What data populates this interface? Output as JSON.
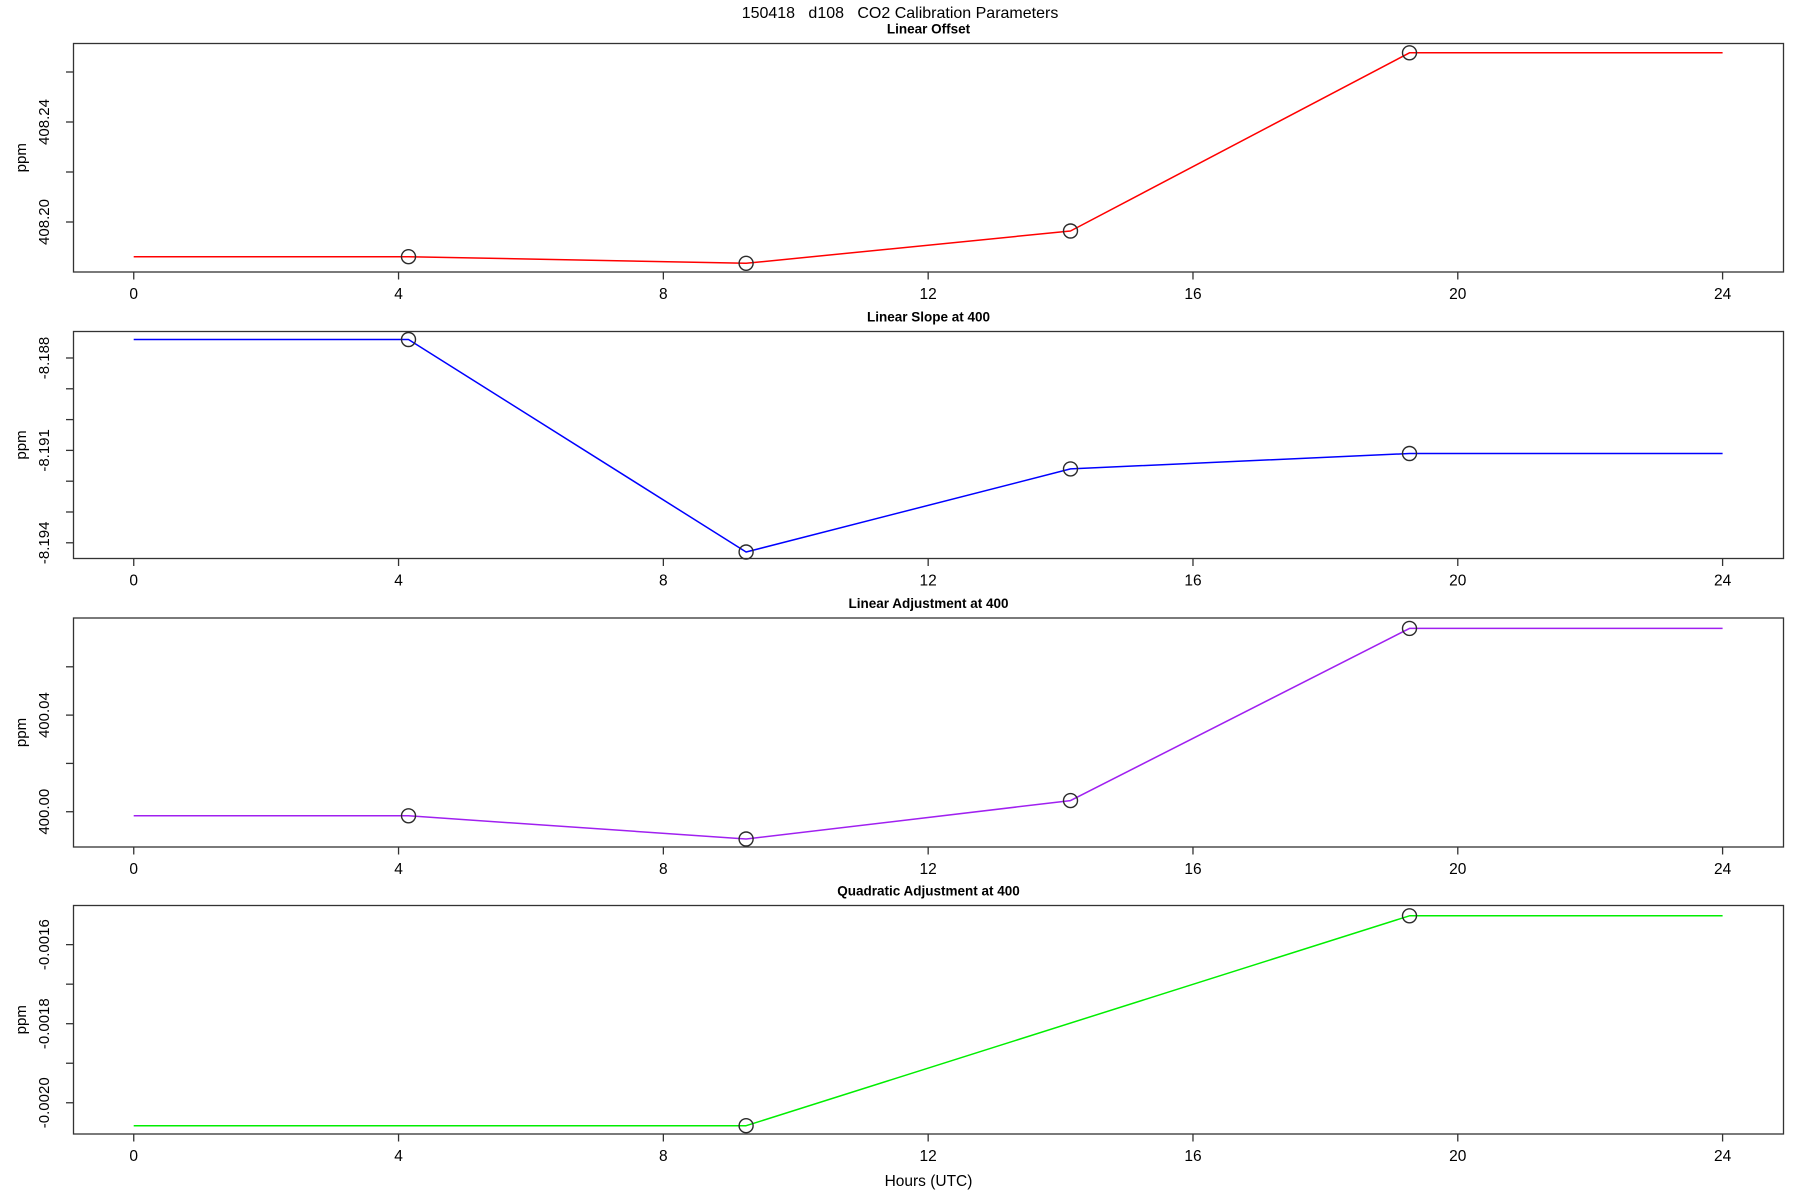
{
  "page_title": "150418   d108   CO2 Calibration Parameters",
  "x_axis": {
    "label": "Hours (UTC)",
    "ticks": [
      0,
      4,
      8,
      12,
      16,
      20,
      24
    ],
    "tick_labels": [
      "0",
      "4",
      "8",
      "12",
      "16",
      "20",
      "24"
    ],
    "xlim": [
      -0.91,
      24.92
    ]
  },
  "colors": {
    "axis": "#333333",
    "marker": "#2b2b2b",
    "text": "#000000"
  },
  "chart_data": [
    {
      "type": "line",
      "title": "Linear Offset",
      "ylabel": "ppm",
      "color": "#ff0000",
      "x": [
        4.15,
        9.25,
        14.15,
        19.27
      ],
      "y": [
        408.1861,
        408.1835,
        408.1964,
        408.2677
      ],
      "line": [
        [
          0,
          408.1861
        ],
        [
          4.15,
          408.1861
        ],
        [
          9.25,
          408.1835
        ],
        [
          14.15,
          408.1964
        ],
        [
          19.27,
          408.2677
        ],
        [
          24,
          408.2677
        ]
      ],
      "ylim": [
        408.18,
        408.2714
      ],
      "yticks": [
        408.2,
        408.22,
        408.24,
        408.26
      ],
      "ytick_labels": [
        {
          "value": 408.2,
          "label": "408.20"
        },
        {
          "value": 408.24,
          "label": "408.24"
        }
      ]
    },
    {
      "type": "line",
      "title": "Linear Slope at 400",
      "ylabel": "ppm",
      "color": "#0000ff",
      "x": [
        4.15,
        9.25,
        14.15,
        19.27
      ],
      "y": [
        -8.1874,
        -8.1943,
        -8.1916,
        -8.1911
      ],
      "line": [
        [
          0,
          -8.1874
        ],
        [
          4.15,
          -8.1874
        ],
        [
          9.25,
          -8.1943
        ],
        [
          14.15,
          -8.1916
        ],
        [
          19.27,
          -8.1911
        ],
        [
          24,
          -8.1911
        ]
      ],
      "ylim": [
        -8.19451,
        -8.18714
      ],
      "yticks": [
        -8.194,
        -8.193,
        -8.192,
        -8.191,
        -8.19,
        -8.189,
        -8.188
      ],
      "ytick_labels": [
        {
          "value": -8.194,
          "label": "-8.194"
        },
        {
          "value": -8.191,
          "label": "-8.191"
        },
        {
          "value": -8.188,
          "label": "-8.188"
        }
      ]
    },
    {
      "type": "line",
      "title": "Linear Adjustment at 400",
      "ylabel": "ppm",
      "color": "#a020f0",
      "x": [
        4.15,
        9.25,
        14.15,
        19.27
      ],
      "y": [
        399.9983,
        399.9887,
        400.0046,
        400.0759
      ],
      "line": [
        [
          0,
          399.9983
        ],
        [
          4.15,
          399.9983
        ],
        [
          9.25,
          399.9887
        ],
        [
          14.15,
          400.0046
        ],
        [
          19.27,
          400.0759
        ],
        [
          24,
          400.0759
        ]
      ],
      "ylim": [
        399.9854,
        400.0802
      ],
      "yticks": [
        400.0,
        400.02,
        400.04,
        400.06
      ],
      "ytick_labels": [
        {
          "value": 400.0,
          "label": "400.00"
        },
        {
          "value": 400.04,
          "label": "400.04"
        }
      ]
    },
    {
      "type": "line",
      "title": "Quadratic Adjustment at 400",
      "ylabel": "ppm",
      "color": "#00ee00",
      "x": [
        9.25,
        19.27
      ],
      "y": [
        -0.002058,
        -0.001527
      ],
      "line": [
        [
          0,
          -0.002058
        ],
        [
          9.25,
          -0.002058
        ],
        [
          19.27,
          -0.001527
        ],
        [
          24,
          -0.001527
        ]
      ],
      "ylim": [
        -0.002079,
        -0.001501
      ],
      "yticks": [
        -0.002,
        -0.0019,
        -0.0018,
        -0.0017,
        -0.0016
      ],
      "ytick_labels": [
        {
          "value": -0.002,
          "label": "-0.0020"
        },
        {
          "value": -0.0018,
          "label": "-0.0018"
        },
        {
          "value": -0.0016,
          "label": "-0.0016"
        }
      ]
    }
  ]
}
